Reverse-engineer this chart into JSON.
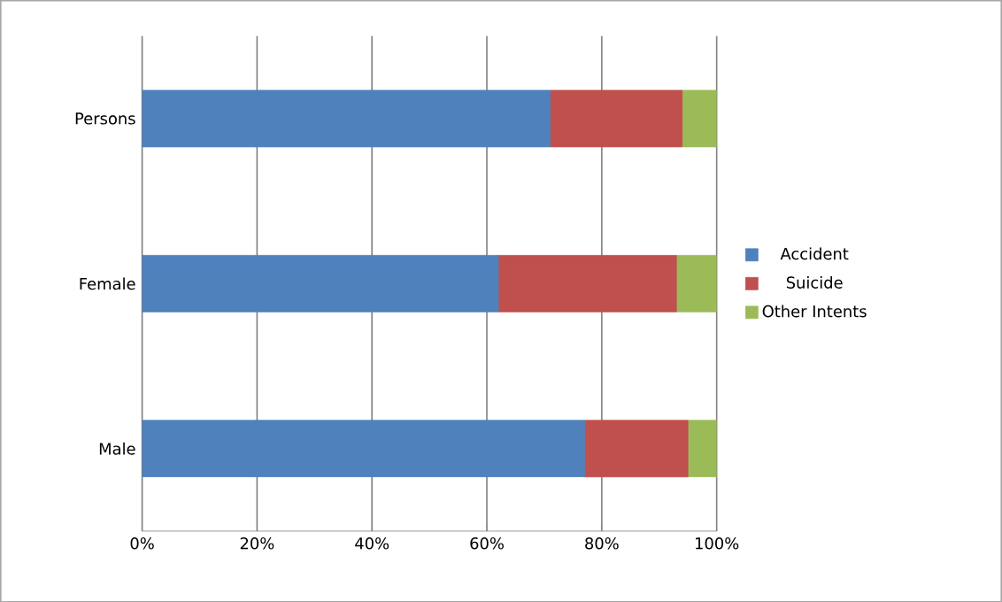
{
  "chart_data": {
    "type": "bar",
    "orientation": "horizontal",
    "stacked": true,
    "categories": [
      "Persons",
      "Female",
      "Male"
    ],
    "series": [
      {
        "name": "Accident",
        "color": "#4f81bd",
        "values": [
          71,
          62,
          77
        ]
      },
      {
        "name": "Suicide",
        "color": "#c0504d",
        "values": [
          23,
          31,
          18
        ]
      },
      {
        "name": "Other Intents",
        "color": "#9bbb59",
        "values": [
          6,
          7,
          5
        ]
      }
    ],
    "xlim": [
      0,
      100
    ],
    "xticks": [
      {
        "value": 0,
        "label": "0%"
      },
      {
        "value": 20,
        "label": "20%"
      },
      {
        "value": 40,
        "label": "40%"
      },
      {
        "value": 60,
        "label": "60%"
      },
      {
        "value": 80,
        "label": "80%"
      },
      {
        "value": 100,
        "label": "100%"
      }
    ],
    "grid": "x",
    "legend": "right"
  }
}
